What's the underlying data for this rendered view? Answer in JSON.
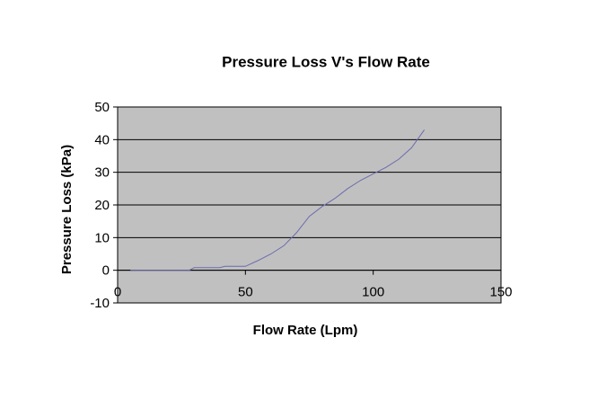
{
  "chart_data": {
    "type": "line",
    "title": "Pressure Loss V's Flow Rate",
    "x_label": "Flow Rate (Lpm)",
    "y_label": "Pressure Loss (kPa)",
    "series": [
      {
        "name": "Pressure Loss",
        "color": "#6b6bb0",
        "x": [
          5,
          28,
          30,
          40,
          42,
          50,
          55,
          60,
          65,
          70,
          75,
          80,
          85,
          90,
          95,
          100,
          105,
          110,
          115,
          120
        ],
        "values": [
          0,
          0,
          0.8,
          0.8,
          1.2,
          1.2,
          3,
          5,
          7.5,
          11.5,
          16.5,
          19.5,
          22,
          25,
          27.5,
          29.5,
          31.5,
          34,
          37.5,
          43
        ]
      }
    ],
    "xlim": [
      0,
      150
    ],
    "xticks": [
      0,
      50,
      100,
      150
    ],
    "ylim": [
      -10,
      50
    ],
    "yticks": [
      -10,
      0,
      10,
      20,
      30,
      40,
      50
    ],
    "grid": true,
    "plot_background": "#c0c0c0"
  }
}
